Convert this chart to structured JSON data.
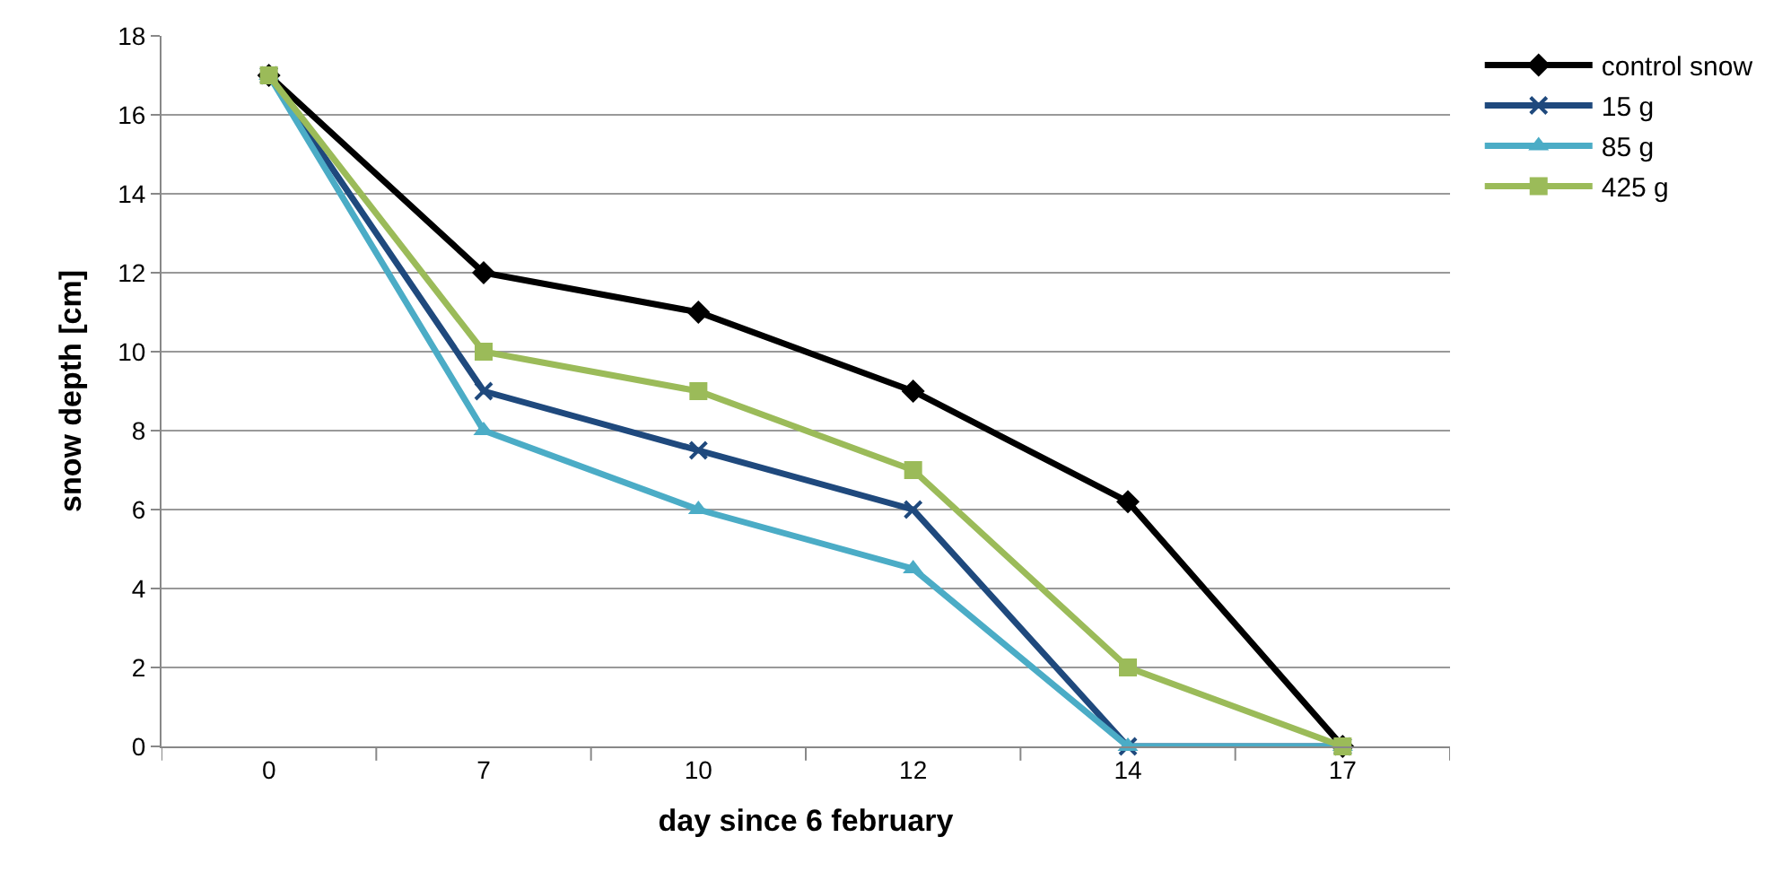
{
  "chart_data": {
    "type": "line",
    "xlabel": "day since 6 february",
    "ylabel": "snow depth [cm]",
    "categories": [
      "0",
      "7",
      "10",
      "12",
      "14",
      "17"
    ],
    "series": [
      {
        "name": "control snow",
        "color": "#000000",
        "marker": "diamond",
        "values": [
          17,
          12,
          11,
          9,
          6.2,
          0
        ]
      },
      {
        "name": "15 g",
        "color": "#1f497d",
        "marker": "cross",
        "values": [
          17,
          9,
          7.5,
          6,
          0,
          0
        ]
      },
      {
        "name": "85 g",
        "color": "#4bacc6",
        "marker": "triangle",
        "values": [
          17,
          8,
          6,
          4.5,
          0,
          0
        ]
      },
      {
        "name": "425 g",
        "color": "#9bbb59",
        "marker": "square",
        "values": [
          17,
          10,
          9,
          7,
          2,
          0
        ]
      }
    ],
    "ylim": [
      0,
      18
    ],
    "yticks": [
      0,
      2,
      4,
      6,
      8,
      10,
      12,
      14,
      16,
      18
    ],
    "grid": "y",
    "legend": "top right",
    "line_style": "solid"
  }
}
